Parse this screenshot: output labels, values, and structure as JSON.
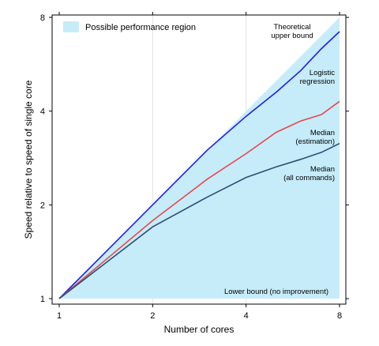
{
  "chart_data": {
    "type": "line",
    "xlabel": "Number of cores",
    "ylabel": "Speed relative to speed of single core",
    "xscale": "log2",
    "yscale": "log2",
    "xlim": [
      1,
      8
    ],
    "ylim": [
      1,
      8
    ],
    "xticks": [
      1,
      2,
      4,
      8
    ],
    "yticks": [
      1,
      2,
      4,
      8
    ],
    "grid": "x-only",
    "legend": {
      "placement": "top-left",
      "entries": [
        {
          "label": "Possible performance region",
          "color": "#c6ecfa"
        }
      ]
    },
    "region": {
      "name": "Possible performance region",
      "color": "#c6ecfa",
      "lower": [
        [
          1,
          1
        ],
        [
          8,
          1
        ]
      ],
      "upper": [
        [
          1,
          1
        ],
        [
          8,
          8
        ]
      ]
    },
    "series": [
      {
        "color": "#1f1fe6",
        "x": [
          1,
          2,
          3,
          4,
          5,
          6,
          7,
          8
        ],
        "y": [
          1,
          2,
          3,
          3.85,
          4.6,
          5.4,
          6.35,
          7.2
        ]
      },
      {
        "color": "#e8474c",
        "x": [
          1,
          2,
          3,
          4,
          5,
          6,
          7,
          8
        ],
        "y": [
          1,
          1.78,
          2.42,
          2.92,
          3.42,
          3.72,
          3.9,
          4.3
        ]
      },
      {
        "color": "#2d4f73",
        "x": [
          1,
          2,
          3,
          4,
          5,
          6,
          7,
          8
        ],
        "y": [
          1,
          1.7,
          2.12,
          2.45,
          2.65,
          2.8,
          2.95,
          3.15
        ]
      }
    ],
    "annotations": [
      {
        "lines": [
          "Theoretical",
          "upper bound"
        ],
        "anchor": "theoretical"
      },
      {
        "lines": [
          "Logistic",
          "regression"
        ],
        "anchor": "logistic"
      },
      {
        "lines": [
          "Median",
          "(estimation)"
        ],
        "anchor": "median-est"
      },
      {
        "lines": [
          "Median",
          "(all commands)"
        ],
        "anchor": "median-all"
      },
      {
        "lines": [
          "Lower bound (no improvement)"
        ],
        "anchor": "lower"
      }
    ]
  }
}
